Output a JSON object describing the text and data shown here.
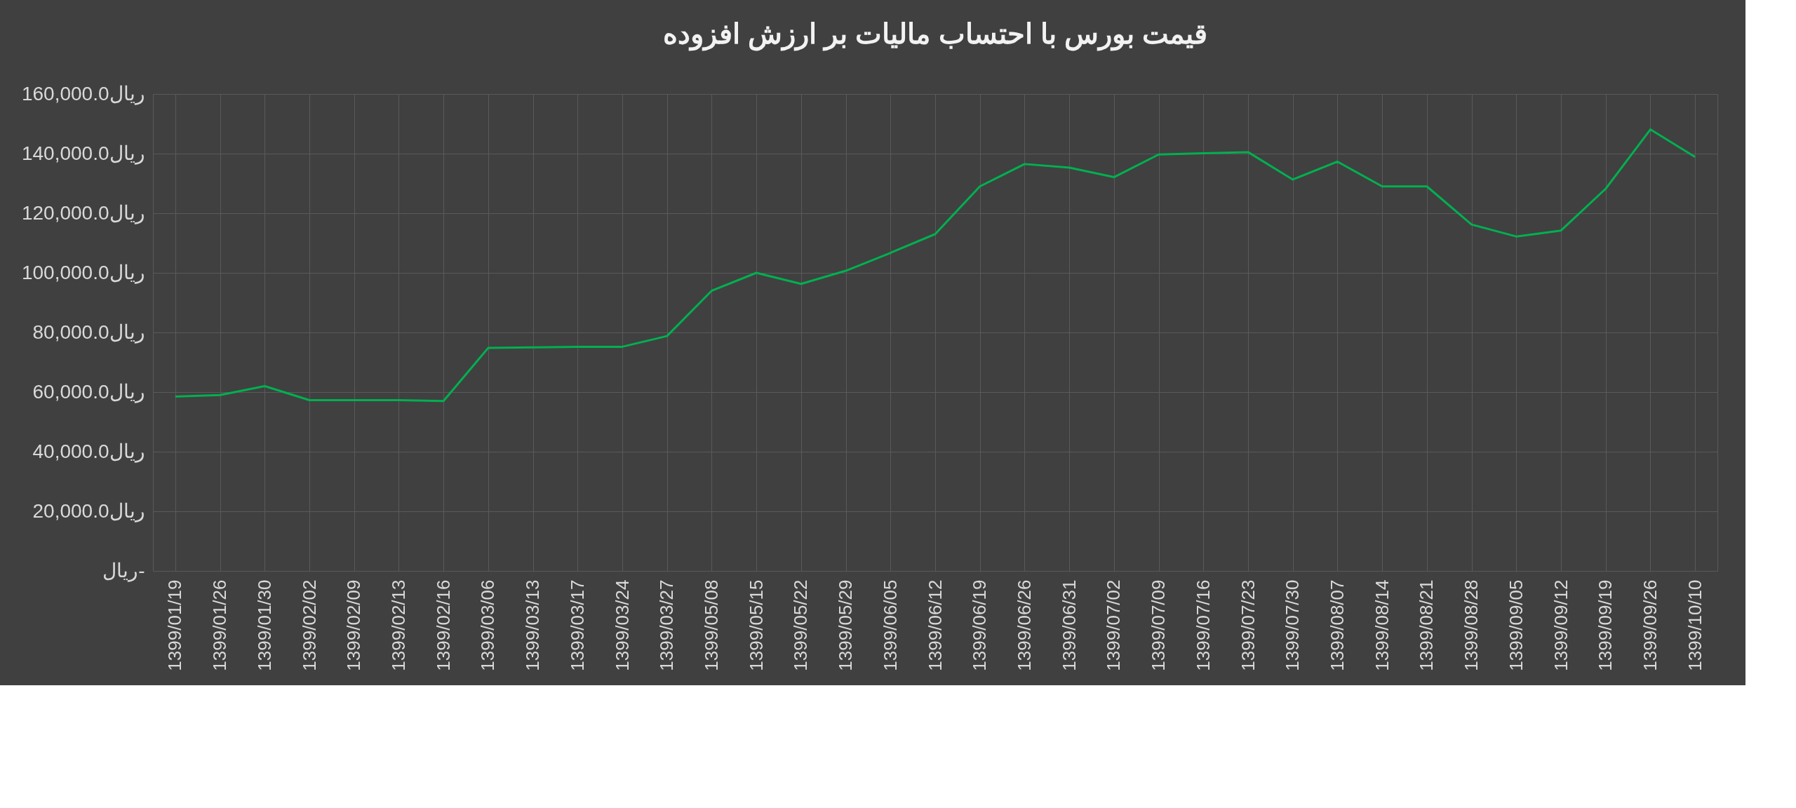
{
  "chart_data": {
    "type": "line",
    "title": "قیمت بورس با احتساب مالیات بر ارزش افزوده",
    "categories": [
      "1399/01/19",
      "1399/01/26",
      "1399/01/30",
      "1399/02/02",
      "1399/02/09",
      "1399/02/13",
      "1399/02/16",
      "1399/03/06",
      "1399/03/13",
      "1399/03/17",
      "1399/03/24",
      "1399/03/27",
      "1399/05/08",
      "1399/05/15",
      "1399/05/22",
      "1399/05/29",
      "1399/06/05",
      "1399/06/12",
      "1399/06/19",
      "1399/06/26",
      "1399/06/31",
      "1399/07/02",
      "1399/07/09",
      "1399/07/16",
      "1399/07/23",
      "1399/07/30",
      "1399/08/07",
      "1399/08/14",
      "1399/08/21",
      "1399/08/28",
      "1399/09/05",
      "1399/09/12",
      "1399/09/19",
      "1399/09/26",
      "1399/10/10"
    ],
    "series": [
      {
        "color": "#00b050",
        "values": [
          58500,
          59000,
          62000,
          57300,
          57300,
          57300,
          57000,
          74800,
          75000,
          75200,
          75200,
          78800,
          94000,
          100000,
          96300,
          100700,
          106700,
          113000,
          129000,
          136500,
          135300,
          132100,
          139700,
          140100,
          140500,
          131300,
          137300,
          129000,
          129000,
          116200,
          112200,
          114200,
          128200,
          148100,
          138900
        ]
      }
    ],
    "ylim": [
      0,
      160000
    ],
    "yticks": [
      {
        "value": 0,
        "label": "ریال-"
      },
      {
        "value": 20000,
        "label": "20,000.0ریال"
      },
      {
        "value": 40000,
        "label": "40,000.0ریال"
      },
      {
        "value": 60000,
        "label": "60,000.0ریال"
      },
      {
        "value": 80000,
        "label": "80,000.0ریال"
      },
      {
        "value": 100000,
        "label": "100,000.0ریال"
      },
      {
        "value": 120000,
        "label": "120,000.0ریال"
      },
      {
        "value": 140000,
        "label": "140,000.0ریال"
      },
      {
        "value": 160000,
        "label": "160,000.0ریال"
      }
    ],
    "grid": true,
    "marker": "none",
    "line_style": "solid"
  }
}
